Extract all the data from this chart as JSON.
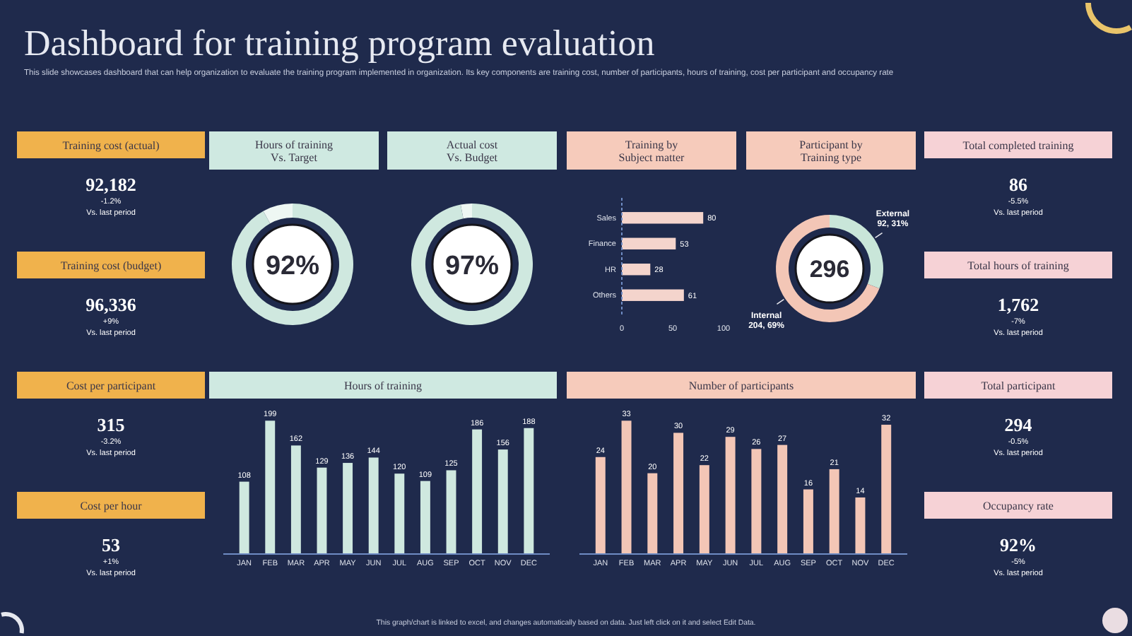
{
  "chart_data": [
    {
      "type": "other",
      "title": "Dashboard for training program evaluation",
      "subtitle": "This slide showcases dashboard that can help organization to evaluate the training program implemented in organization. Its key components are training cost, number of participants, hours of training, cost per participant and occupancy rate",
      "annotations": [
        "This graph/chart is linked to excel, and changes automatically based on data. Just left click on it and select Edit Data."
      ]
    },
    {
      "type": "other",
      "title": "Training cost (actual)",
      "annotations": [
        "92,182",
        "-1.2%",
        "Vs. last period"
      ]
    },
    {
      "type": "other",
      "title": "Training cost (budget)",
      "annotations": [
        "96,336",
        "+9%",
        "Vs. last period"
      ]
    },
    {
      "type": "donut",
      "title": "Hours of training Vs. Target",
      "categories": [
        null,
        null
      ],
      "values": [
        92,
        8
      ],
      "colors": [
        "#cfe8df",
        "#eef7f3"
      ],
      "annotations": [
        "92%"
      ]
    },
    {
      "type": "donut",
      "title": "Actual cost Vs. Budget",
      "categories": [
        null,
        null
      ],
      "values": [
        97,
        3
      ],
      "colors": [
        "#cfe8df",
        "#eef7f3"
      ],
      "annotations": [
        "97%"
      ]
    },
    {
      "type": "bar",
      "orientation": "horizontal",
      "title": "Training by Subject matter",
      "categories": [
        "Sales",
        "Finance",
        "HR",
        "Others"
      ],
      "values": [
        80,
        53,
        28,
        61
      ],
      "color": "#f4d4cc",
      "xlim": [
        0,
        100
      ],
      "xticks": [
        0,
        50,
        100
      ],
      "data_labels": true
    },
    {
      "type": "donut",
      "title": "Participant by Training type",
      "categories": [
        "External",
        "Internal"
      ],
      "values": [
        92,
        204
      ],
      "colors": [
        "#c9e6d9",
        "#f3c6b6"
      ],
      "value_labels": [
        "92, 31%",
        "204, 69%"
      ],
      "annotations": [
        "296"
      ]
    },
    {
      "type": "other",
      "title": "Total completed training",
      "annotations": [
        "86",
        "-5.5%",
        "Vs. last period"
      ]
    },
    {
      "type": "other",
      "title": "Total hours of training",
      "annotations": [
        "1,762",
        "-7%",
        "Vs. last period"
      ]
    },
    {
      "type": "other",
      "title": "Cost per participant",
      "annotations": [
        "315",
        "-3.2%",
        "Vs. last period"
      ]
    },
    {
      "type": "other",
      "title": "Cost per hour",
      "annotations": [
        "53",
        "+1%",
        "Vs. last period"
      ]
    },
    {
      "type": "bar",
      "title": "Hours of training",
      "categories": [
        "JAN",
        "FEB",
        "MAR",
        "APR",
        "MAY",
        "JUN",
        "JUL",
        "AUG",
        "SEP",
        "OCT",
        "NOV",
        "DEC"
      ],
      "values": [
        108,
        199,
        162,
        129,
        136,
        144,
        120,
        109,
        125,
        186,
        156,
        188
      ],
      "color": "#cfe8df",
      "data_labels": true
    },
    {
      "type": "bar",
      "title": "Number of participants",
      "categories": [
        "JAN",
        "FEB",
        "MAR",
        "APR",
        "MAY",
        "JUN",
        "JUL",
        "AUG",
        "SEP",
        "OCT",
        "NOV",
        "DEC"
      ],
      "values": [
        24,
        33,
        20,
        30,
        22,
        29,
        26,
        27,
        16,
        21,
        14,
        32
      ],
      "color": "#f3c6b6",
      "data_labels": true
    },
    {
      "type": "other",
      "title": "Total participant",
      "annotations": [
        "294",
        "-0.5%",
        "Vs. last period"
      ]
    },
    {
      "type": "other",
      "title": "Occupancy rate",
      "annotations": [
        "92%",
        "-5%",
        "Vs. last period"
      ]
    }
  ]
}
